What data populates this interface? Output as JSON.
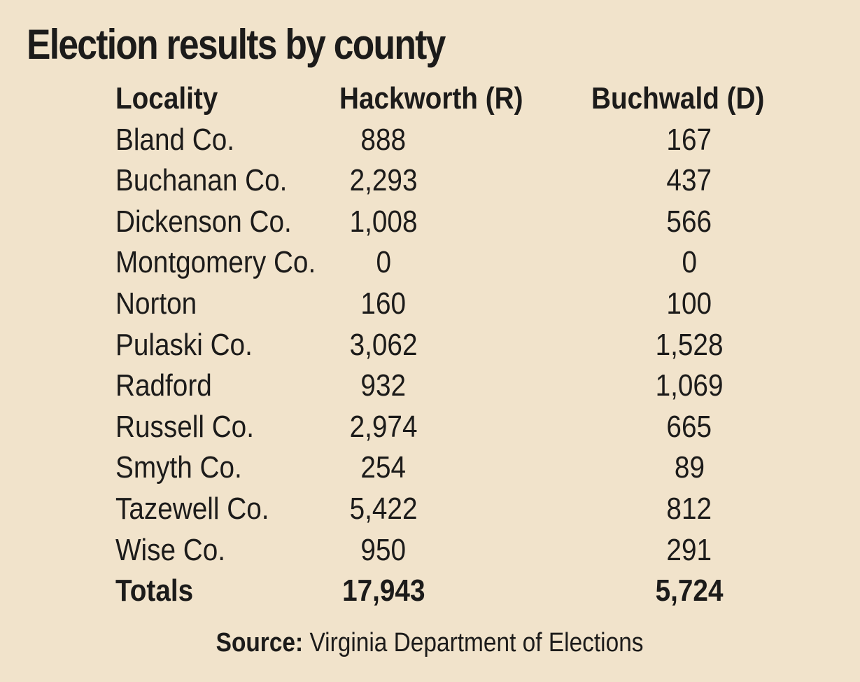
{
  "title": "Election results by county",
  "table": {
    "headers": {
      "locality": "Locality",
      "hackworth": "Hackworth (R)",
      "buchwald": "Buchwald (D)"
    },
    "rows": [
      {
        "locality": "Bland Co.",
        "hackworth": "888",
        "buchwald": "167"
      },
      {
        "locality": "Buchanan Co.",
        "hackworth": "2,293",
        "buchwald": "437"
      },
      {
        "locality": "Dickenson Co.",
        "hackworth": "1,008",
        "buchwald": "566"
      },
      {
        "locality": "Montgomery Co.",
        "hackworth": "0",
        "buchwald": "0"
      },
      {
        "locality": "Norton",
        "hackworth": "160",
        "buchwald": "100"
      },
      {
        "locality": "Pulaski Co.",
        "hackworth": "3,062",
        "buchwald": "1,528"
      },
      {
        "locality": "Radford",
        "hackworth": "932",
        "buchwald": "1,069"
      },
      {
        "locality": "Russell Co.",
        "hackworth": "2,974",
        "buchwald": "665"
      },
      {
        "locality": "Smyth Co.",
        "hackworth": "254",
        "buchwald": "89"
      },
      {
        "locality": "Tazewell Co.",
        "hackworth": "5,422",
        "buchwald": "812"
      },
      {
        "locality": "Wise Co.",
        "hackworth": "950",
        "buchwald": "291"
      }
    ],
    "totals": {
      "label": "Totals",
      "hackworth": "17,943",
      "buchwald": "5,724"
    }
  },
  "source": {
    "label": "Source:",
    "text": "Virginia Department of Elections"
  },
  "colors": {
    "background": "#f1e3cb",
    "text": "#1c1b1a"
  }
}
